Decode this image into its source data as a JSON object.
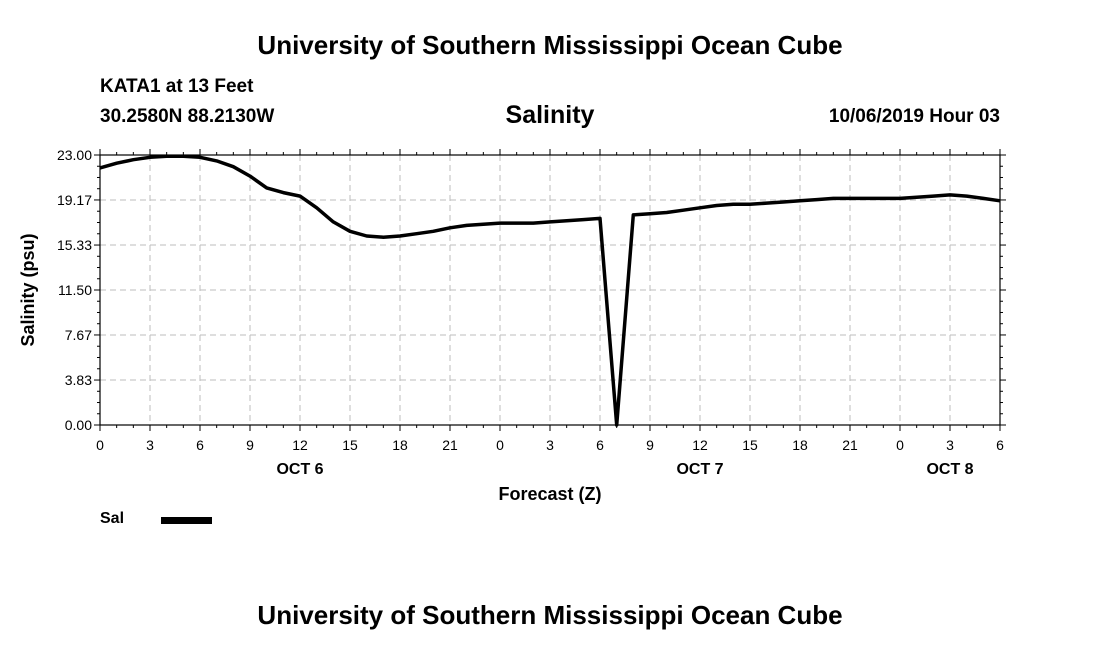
{
  "header": {
    "title": "University of Southern Mississippi Ocean Cube",
    "station": "KATA1 at 13 Feet",
    "coordinates": "30.2580N 88.2130W",
    "datetime": "10/06/2019 Hour 03"
  },
  "footer": {
    "title": "University of Southern Mississippi Ocean Cube"
  },
  "legend": {
    "label": "Sal"
  },
  "chart_data": {
    "type": "line",
    "title": "Salinity",
    "xlabel": "Forecast (Z)",
    "ylabel": "Salinity (psu)",
    "ylim": [
      0,
      23
    ],
    "xlim": [
      0,
      54
    ],
    "grid": true,
    "y_ticks": [
      "0.00",
      "3.83",
      "7.67",
      "11.50",
      "15.33",
      "19.17",
      "23.00"
    ],
    "x_ticks": [
      {
        "x": 0,
        "label": "0"
      },
      {
        "x": 3,
        "label": "3"
      },
      {
        "x": 6,
        "label": "6"
      },
      {
        "x": 9,
        "label": "9"
      },
      {
        "x": 12,
        "label": "12"
      },
      {
        "x": 15,
        "label": "15"
      },
      {
        "x": 18,
        "label": "18"
      },
      {
        "x": 21,
        "label": "21"
      },
      {
        "x": 24,
        "label": "0"
      },
      {
        "x": 27,
        "label": "3"
      },
      {
        "x": 30,
        "label": "6"
      },
      {
        "x": 33,
        "label": "9"
      },
      {
        "x": 36,
        "label": "12"
      },
      {
        "x": 39,
        "label": "15"
      },
      {
        "x": 42,
        "label": "18"
      },
      {
        "x": 45,
        "label": "21"
      },
      {
        "x": 48,
        "label": "0"
      },
      {
        "x": 51,
        "label": "3"
      },
      {
        "x": 54,
        "label": "6"
      }
    ],
    "date_labels": [
      {
        "x": 12,
        "label": "OCT 6"
      },
      {
        "x": 36,
        "label": "OCT 7"
      },
      {
        "x": 51,
        "label": "OCT 8"
      }
    ],
    "series": [
      {
        "name": "Sal",
        "color": "#000000",
        "x": [
          0,
          1,
          2,
          3,
          4,
          5,
          6,
          7,
          8,
          9,
          10,
          11,
          12,
          13,
          14,
          15,
          16,
          17,
          18,
          19,
          20,
          21,
          22,
          23,
          24,
          25,
          26,
          27,
          28,
          29,
          30,
          31,
          32,
          33,
          34,
          35,
          36,
          37,
          38,
          39,
          40,
          41,
          42,
          43,
          44,
          45,
          46,
          47,
          48,
          49,
          50,
          51,
          52,
          53,
          54
        ],
        "values": [
          21.9,
          22.3,
          22.6,
          22.8,
          22.9,
          22.9,
          22.8,
          22.5,
          22.0,
          21.2,
          20.2,
          19.8,
          19.5,
          18.5,
          17.3,
          16.5,
          16.1,
          16.0,
          16.1,
          16.3,
          16.5,
          16.8,
          17.0,
          17.1,
          17.2,
          17.2,
          17.2,
          17.3,
          17.4,
          17.5,
          17.6,
          0.0,
          17.9,
          18.0,
          18.1,
          18.3,
          18.5,
          18.7,
          18.8,
          18.8,
          18.9,
          19.0,
          19.1,
          19.2,
          19.3,
          19.3,
          19.3,
          19.3,
          19.3,
          19.4,
          19.5,
          19.6,
          19.5,
          19.3,
          19.1
        ]
      }
    ]
  }
}
